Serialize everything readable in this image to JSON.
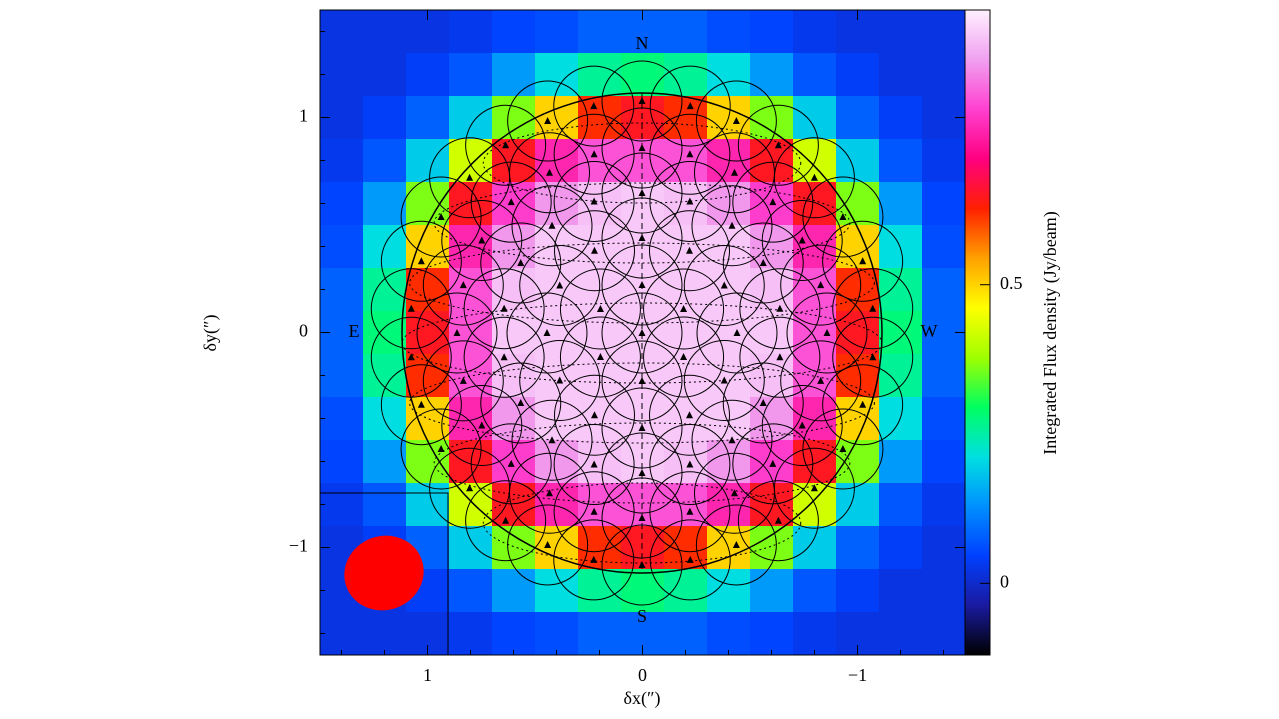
{
  "chart_data": {
    "type": "heatmap",
    "xlabel": "δx(″)",
    "ylabel": "δy(″)",
    "colorbar_label": "Integrated Flux density (Jy/beam)",
    "annotations": [
      "N",
      "S",
      "E",
      "W"
    ],
    "xlim": [
      1.5,
      -1.5
    ],
    "ylim": [
      -1.5,
      1.5
    ],
    "xticks": [
      1,
      0,
      {
        "value": -1,
        "label": "−1"
      }
    ],
    "yticks": [
      {
        "value": -1,
        "label": "−1"
      },
      0,
      1
    ],
    "x": [
      1.4,
      1.2,
      1.0,
      0.8,
      0.6,
      0.4,
      0.2,
      0,
      -0.2,
      -0.4,
      -0.6,
      -0.8,
      -1.0,
      -1.2,
      -1.4
    ],
    "y": [
      1.4,
      1.2,
      1.0,
      0.8,
      0.6,
      0.4,
      0.2,
      0,
      -0.2,
      -0.4,
      -0.6,
      -0.8,
      -1.0,
      -1.2,
      -1.4
    ],
    "z": [
      [
        0.02,
        0.02,
        0.02,
        0.03,
        0.05,
        0.06,
        0.08,
        0.08,
        0.08,
        0.06,
        0.05,
        0.03,
        0.02,
        0.02,
        0.02
      ],
      [
        0.02,
        0.02,
        0.04,
        0.07,
        0.14,
        0.21,
        0.26,
        0.28,
        0.26,
        0.21,
        0.14,
        0.07,
        0.04,
        0.02,
        0.02
      ],
      [
        0.02,
        0.04,
        0.08,
        0.19,
        0.36,
        0.5,
        0.62,
        0.65,
        0.62,
        0.5,
        0.36,
        0.19,
        0.08,
        0.04,
        0.02
      ],
      [
        0.03,
        0.07,
        0.19,
        0.42,
        0.65,
        0.76,
        0.81,
        0.81,
        0.81,
        0.76,
        0.65,
        0.42,
        0.19,
        0.07,
        0.03
      ],
      [
        0.05,
        0.14,
        0.36,
        0.65,
        0.79,
        0.87,
        0.91,
        0.92,
        0.91,
        0.87,
        0.79,
        0.65,
        0.36,
        0.14,
        0.05
      ],
      [
        0.06,
        0.21,
        0.5,
        0.76,
        0.87,
        0.92,
        0.92,
        0.92,
        0.92,
        0.92,
        0.87,
        0.76,
        0.5,
        0.21,
        0.06
      ],
      [
        0.08,
        0.26,
        0.62,
        0.81,
        0.91,
        0.92,
        0.92,
        0.92,
        0.92,
        0.92,
        0.91,
        0.81,
        0.62,
        0.26,
        0.08
      ],
      [
        0.08,
        0.28,
        0.65,
        0.81,
        0.92,
        0.92,
        0.92,
        0.92,
        0.92,
        0.92,
        0.92,
        0.81,
        0.65,
        0.28,
        0.08
      ],
      [
        0.08,
        0.26,
        0.62,
        0.81,
        0.91,
        0.92,
        0.92,
        0.92,
        0.92,
        0.92,
        0.91,
        0.81,
        0.62,
        0.26,
        0.08
      ],
      [
        0.06,
        0.21,
        0.5,
        0.76,
        0.87,
        0.92,
        0.92,
        0.92,
        0.92,
        0.92,
        0.87,
        0.76,
        0.5,
        0.21,
        0.06
      ],
      [
        0.05,
        0.14,
        0.36,
        0.65,
        0.79,
        0.87,
        0.91,
        0.92,
        0.91,
        0.87,
        0.79,
        0.65,
        0.36,
        0.14,
        0.05
      ],
      [
        0.03,
        0.07,
        0.19,
        0.42,
        0.65,
        0.76,
        0.81,
        0.81,
        0.81,
        0.76,
        0.65,
        0.42,
        0.19,
        0.07,
        0.03
      ],
      [
        0.02,
        0.04,
        0.08,
        0.19,
        0.36,
        0.5,
        0.62,
        0.65,
        0.62,
        0.5,
        0.36,
        0.19,
        0.08,
        0.04,
        0.02
      ],
      [
        0.02,
        0.02,
        0.04,
        0.07,
        0.14,
        0.21,
        0.26,
        0.28,
        0.26,
        0.21,
        0.14,
        0.07,
        0.04,
        0.02,
        0.02
      ],
      [
        0.02,
        0.02,
        0.02,
        0.03,
        0.05,
        0.06,
        0.08,
        0.08,
        0.08,
        0.06,
        0.05,
        0.03,
        0.02,
        0.02,
        0.02
      ]
    ],
    "colorbar_range": [
      -0.12,
      0.96
    ],
    "colorbar_ticks": [
      0,
      0.5
    ],
    "colorscale": [
      "#000000",
      "#1a1aa0",
      "#0040ff",
      "#0090ff",
      "#00e0e0",
      "#00ff60",
      "#a0ff00",
      "#ffff00",
      "#ffa000",
      "#ff2000",
      "#ff0080",
      "#ff40d0",
      "#f0a0f0",
      "#fff0ff"
    ],
    "beam_color": "#ff0000"
  }
}
